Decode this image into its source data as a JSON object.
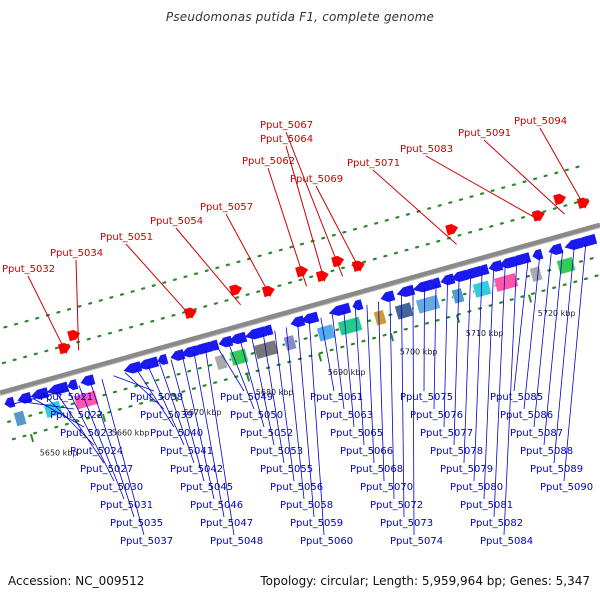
{
  "title": "Pseudomonas putida F1, complete genome",
  "accession": "Accession: NC_009512",
  "summary": "Topology: circular; Length: 5,959,964 bp; Genes: 5,347",
  "ticks": [
    "5650 kbp",
    "5660 kbp",
    "5670 kbp",
    "5680 kbp",
    "5690 kbp",
    "5700 kbp",
    "5710 kbp",
    "5720 kbp"
  ],
  "top_labels": [
    "Pput_5032",
    "Pput_5034",
    "Pput_5051",
    "Pput_5054",
    "Pput_5057",
    "Pput_5062",
    "Pput_5064",
    "Pput_5067",
    "Pput_5069",
    "Pput_5071",
    "Pput_5083",
    "Pput_5091",
    "Pput_5094"
  ],
  "bottom_labels": [
    "Pput_5021",
    "Pput_5022",
    "Pput_5023",
    "Pput_5024",
    "Pput_5027",
    "Pput_5030",
    "Pput_5031",
    "Pput_5035",
    "Pput_5037",
    "Pput_5038",
    "Pput_5039",
    "Pput_5040",
    "Pput_5041",
    "Pput_5042",
    "Pput_5045",
    "Pput_5046",
    "Pput_5047",
    "Pput_5048",
    "Pput_5049",
    "Pput_5050",
    "Pput_5052",
    "Pput_5053",
    "Pput_5055",
    "Pput_5056",
    "Pput_5058",
    "Pput_5059",
    "Pput_5060",
    "Pput_5061",
    "Pput_5063",
    "Pput_5065",
    "Pput_5066",
    "Pput_5068",
    "Pput_5070",
    "Pput_5072",
    "Pput_5073",
    "Pput_5074",
    "Pput_5075",
    "Pput_5076",
    "Pput_5077",
    "Pput_5078",
    "Pput_5079",
    "Pput_5080",
    "Pput_5081",
    "Pput_5082",
    "Pput_5084",
    "Pput_5085",
    "Pput_5086",
    "Pput_5087",
    "Pput_5088",
    "Pput_5089",
    "Pput_5090"
  ],
  "colors": {
    "forward_label": "#cc0000",
    "reverse_label": "#0000cc",
    "forward_gene": "#ff0000",
    "reverse_gene": "#1a1aee",
    "track_dots": "#2a8a2a",
    "backbone": "#8a8a8a"
  },
  "symbols": {
    "forward-gene-icon": "red pentagon arrow",
    "reverse-gene-icon": "blue pentagon arrow",
    "feature-block-icon": "shaded rectangle"
  }
}
